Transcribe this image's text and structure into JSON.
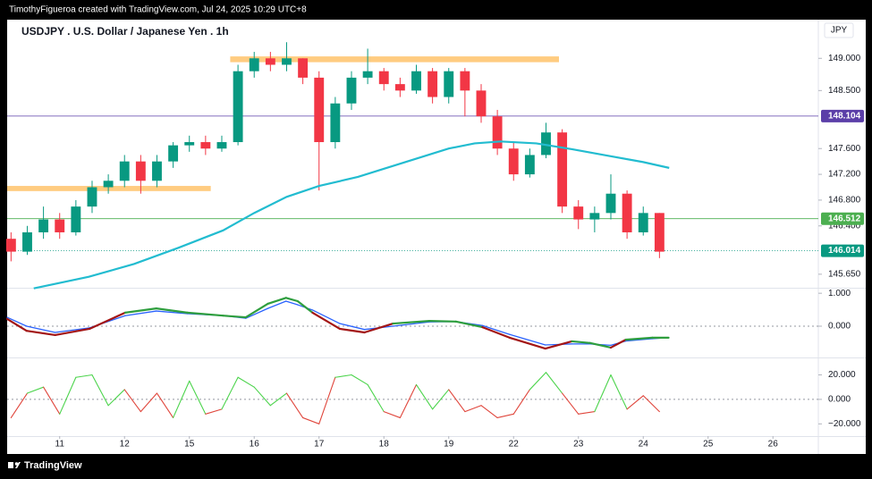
{
  "header": {
    "credit": "TimothyFigueroa created with TradingView.com, Jul 24, 2025 10:29 UTC+8",
    "footer": "TradingView"
  },
  "chart_data": [
    {
      "type": "candlestick",
      "title": "USDJPY . U.S. Dollar / Japanese Yen . 1h",
      "currency": "JPY",
      "x": [
        -0.75,
        -0.5,
        -0.25,
        0,
        0.25,
        0.5,
        0.75,
        1,
        1.25,
        1.5,
        1.75,
        2,
        2.25,
        2.5,
        2.75,
        3,
        3.25,
        3.5,
        3.75,
        4,
        4.25,
        4.5,
        4.75,
        5,
        5.25,
        5.5,
        5.75,
        6,
        6.25,
        6.5,
        6.75,
        7,
        7.25,
        7.5,
        7.75,
        8,
        8.25,
        8.5,
        8.75,
        9,
        9.25
      ],
      "open": [
        146.2,
        146.0,
        146.3,
        146.5,
        146.3,
        146.7,
        147.0,
        147.1,
        147.4,
        147.1,
        147.4,
        147.65,
        147.7,
        147.6,
        147.7,
        148.8,
        149.0,
        148.9,
        149.0,
        148.7,
        147.7,
        148.3,
        148.7,
        148.8,
        148.6,
        148.5,
        148.8,
        148.4,
        148.8,
        148.5,
        148.1,
        147.6,
        147.2,
        147.5,
        147.85,
        146.7,
        146.5,
        146.6,
        146.9,
        146.3,
        146.6
      ],
      "high": [
        146.3,
        146.4,
        146.7,
        146.6,
        146.8,
        147.1,
        147.2,
        147.5,
        147.5,
        147.5,
        147.7,
        147.8,
        147.8,
        147.8,
        148.9,
        149.1,
        149.1,
        149.25,
        149.0,
        148.8,
        148.4,
        148.8,
        149.15,
        148.85,
        148.7,
        148.9,
        148.85,
        148.85,
        148.85,
        148.6,
        148.2,
        147.7,
        147.6,
        148.0,
        147.9,
        146.8,
        146.7,
        147.2,
        146.95,
        146.7,
        146.6
      ],
      "low": [
        145.85,
        145.95,
        146.2,
        146.2,
        146.25,
        146.6,
        146.9,
        147.0,
        146.9,
        147.0,
        147.3,
        147.55,
        147.5,
        147.55,
        147.65,
        148.7,
        148.8,
        148.8,
        148.6,
        146.95,
        147.6,
        148.2,
        148.6,
        148.5,
        148.4,
        148.45,
        148.3,
        148.3,
        148.1,
        148.0,
        147.5,
        147.1,
        147.15,
        147.45,
        146.6,
        146.35,
        146.3,
        146.5,
        146.2,
        146.25,
        145.9
      ],
      "close": [
        146.0,
        146.3,
        146.5,
        146.3,
        146.7,
        147.0,
        147.1,
        147.4,
        147.1,
        147.4,
        147.65,
        147.7,
        147.6,
        147.7,
        148.8,
        149.0,
        148.9,
        149.0,
        148.7,
        147.7,
        148.3,
        148.7,
        148.8,
        148.6,
        148.5,
        148.8,
        148.4,
        148.8,
        148.5,
        148.1,
        147.6,
        147.2,
        147.5,
        147.85,
        146.7,
        146.5,
        146.6,
        146.9,
        146.3,
        146.6,
        146.0
      ],
      "up_color": "#089981",
      "down_color": "#f23645",
      "ma": {
        "x": [
          -0.4,
          0.45,
          1.15,
          1.83,
          2.52,
          3.0,
          3.5,
          4.0,
          4.6,
          5.3,
          6.0,
          6.4,
          6.8,
          7.35,
          7.9,
          8.45,
          9.0,
          9.4
        ],
        "values": [
          145.43,
          145.61,
          145.81,
          146.06,
          146.33,
          146.6,
          146.85,
          147.02,
          147.16,
          147.38,
          147.6,
          147.68,
          147.71,
          147.68,
          147.59,
          147.49,
          147.39,
          147.3
        ],
        "color": "#22bcd0"
      },
      "zones": [
        {
          "x": [
            2.63,
            7.7
          ],
          "y": [
            148.94,
            149.03
          ],
          "color": "#ffcc80"
        },
        {
          "x": [
            -0.81,
            2.33
          ],
          "y": [
            146.94,
            147.02
          ],
          "color": "#ffcc80"
        }
      ],
      "price_lines": [
        {
          "value": 148.104,
          "color": "#5b3ea8",
          "dotted": false
        },
        {
          "value": 146.512,
          "color": "#4caf50",
          "dotted": false
        },
        {
          "value": 146.014,
          "color": "#089981",
          "dotted": true
        }
      ],
      "xlim": [
        -0.81,
        11.7
      ],
      "xticks": [
        {
          "value": 0,
          "label": "11"
        },
        {
          "value": 1,
          "label": "12"
        },
        {
          "value": 2,
          "label": "15"
        },
        {
          "value": 3,
          "label": "16"
        },
        {
          "value": 4,
          "label": "17"
        },
        {
          "value": 5,
          "label": "18"
        },
        {
          "value": 6,
          "label": "19"
        },
        {
          "value": 7,
          "label": "22"
        },
        {
          "value": 8,
          "label": "23"
        },
        {
          "value": 9,
          "label": "24"
        },
        {
          "value": 10,
          "label": "25"
        },
        {
          "value": 11,
          "label": "26"
        }
      ],
      "ylim": [
        145.44,
        149.6
      ],
      "yticks": [
        {
          "value": 149,
          "label": "149.000"
        },
        {
          "value": 148.5,
          "label": "148.500"
        },
        {
          "value": 147.6,
          "label": "147.600"
        },
        {
          "value": 147.2,
          "label": "147.200"
        },
        {
          "value": 146.8,
          "label": "146.800"
        },
        {
          "value": 146.4,
          "label": "146.400"
        },
        {
          "value": 145.65,
          "label": "145.650"
        }
      ]
    },
    {
      "type": "line",
      "x": [
        -0.81,
        -0.51,
        -0.07,
        0.46,
        1.01,
        1.49,
        1.97,
        2.52,
        2.87,
        3.21,
        3.49,
        3.67,
        3.9,
        4.32,
        4.7,
        5.14,
        5.7,
        6.11,
        6.52,
        6.94,
        7.49,
        7.9,
        8.18,
        8.5,
        8.73,
        9.14,
        9.39
      ],
      "series": [
        {
          "color": "#2e9e3e",
          "down_color": "#a31515",
          "width": 2.2,
          "values": [
            0.22,
            -0.14,
            -0.27,
            -0.08,
            0.41,
            0.54,
            0.41,
            0.32,
            0.27,
            0.68,
            0.86,
            0.76,
            0.41,
            -0.08,
            -0.19,
            0.08,
            0.16,
            0.14,
            -0.03,
            -0.35,
            -0.68,
            -0.46,
            -0.51,
            -0.65,
            -0.41,
            -0.35,
            -0.35
          ]
        },
        {
          "color": "#2962ff",
          "width": 1.3,
          "values": [
            0.27,
            0.0,
            -0.19,
            -0.05,
            0.32,
            0.46,
            0.38,
            0.32,
            0.24,
            0.54,
            0.76,
            0.65,
            0.49,
            0.08,
            -0.1,
            0.0,
            0.13,
            0.14,
            0.02,
            -0.25,
            -0.57,
            -0.54,
            -0.54,
            -0.58,
            -0.45,
            -0.38,
            -0.35
          ]
        }
      ],
      "ylim": [
        -0.95,
        1.14
      ],
      "yticks": [
        {
          "value": 1,
          "label": "1.000"
        },
        {
          "value": 0,
          "label": "0.000"
        }
      ]
    },
    {
      "type": "oscillator",
      "x": [
        -0.75,
        -0.5,
        -0.25,
        0,
        0.25,
        0.5,
        0.75,
        1,
        1.25,
        1.5,
        1.75,
        2,
        2.25,
        2.5,
        2.75,
        3,
        3.25,
        3.5,
        3.75,
        4,
        4.25,
        4.5,
        4.75,
        5,
        5.25,
        5.5,
        5.75,
        6,
        6.25,
        6.5,
        6.75,
        7,
        7.25,
        7.5,
        7.75,
        8,
        8.25,
        8.5,
        8.75,
        9,
        9.25
      ],
      "series": [
        {
          "color": "#4cd44c",
          "down_color": "#e0463c",
          "width": 1.1,
          "values": [
            -15,
            5,
            10,
            -12,
            18,
            20,
            -5,
            8,
            -10,
            5,
            -15,
            15,
            -12,
            -8,
            18,
            10,
            -5,
            5,
            -15,
            -20,
            18,
            20,
            12,
            -10,
            -15,
            12,
            -8,
            8,
            -10,
            -5,
            -15,
            -12,
            8,
            22,
            5,
            -12,
            -10,
            20,
            -8,
            3,
            -10
          ]
        }
      ],
      "ylim": [
        -30,
        33.5
      ],
      "yticks": [
        {
          "value": 20,
          "label": "20.000"
        },
        {
          "value": 0,
          "label": "0.000"
        },
        {
          "value": -20,
          "label": "−20.000"
        }
      ]
    }
  ]
}
